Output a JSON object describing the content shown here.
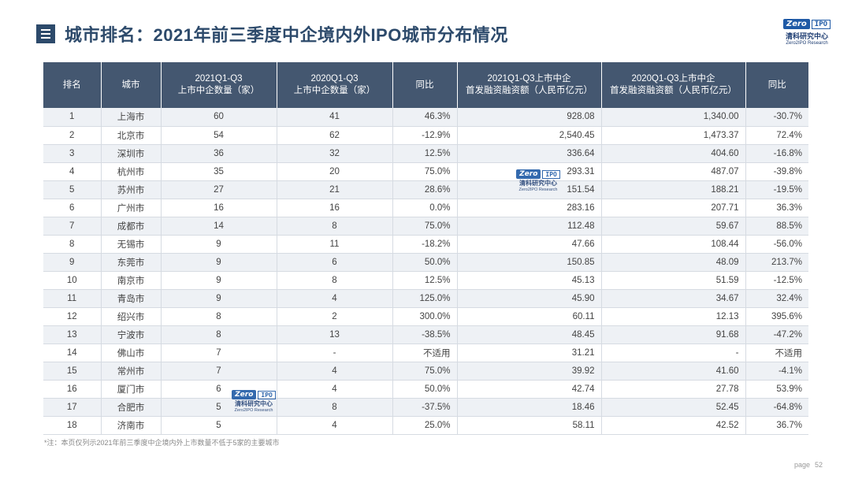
{
  "header": {
    "title": "城市排名：2021年前三季度中企境内外IPO城市分布情况"
  },
  "logo": {
    "zero": "Zero",
    "ipo": "IPO",
    "cn": "清科研究中心",
    "en": "Zero2IPO Research"
  },
  "table": {
    "columns": [
      "排名",
      "城市",
      "2021Q1-Q3\n上市中企数量（家）",
      "2020Q1-Q3\n上市中企数量（家）",
      "同比",
      "2021Q1-Q3上市中企\n首发融资融资额（人民币亿元）",
      "2020Q1-Q3上市中企\n首发融资融资额（人民币亿元）",
      "同比"
    ],
    "rows": [
      [
        "1",
        "上海市",
        "60",
        "41",
        "46.3%",
        "928.08",
        "1,340.00",
        "-30.7%"
      ],
      [
        "2",
        "北京市",
        "54",
        "62",
        "-12.9%",
        "2,540.45",
        "1,473.37",
        "72.4%"
      ],
      [
        "3",
        "深圳市",
        "36",
        "32",
        "12.5%",
        "336.64",
        "404.60",
        "-16.8%"
      ],
      [
        "4",
        "杭州市",
        "35",
        "20",
        "75.0%",
        "293.31",
        "487.07",
        "-39.8%"
      ],
      [
        "5",
        "苏州市",
        "27",
        "21",
        "28.6%",
        "151.54",
        "188.21",
        "-19.5%"
      ],
      [
        "6",
        "广州市",
        "16",
        "16",
        "0.0%",
        "283.16",
        "207.71",
        "36.3%"
      ],
      [
        "7",
        "成都市",
        "14",
        "8",
        "75.0%",
        "112.48",
        "59.67",
        "88.5%"
      ],
      [
        "8",
        "无锡市",
        "9",
        "11",
        "-18.2%",
        "47.66",
        "108.44",
        "-56.0%"
      ],
      [
        "9",
        "东莞市",
        "9",
        "6",
        "50.0%",
        "150.85",
        "48.09",
        "213.7%"
      ],
      [
        "10",
        "南京市",
        "9",
        "8",
        "12.5%",
        "45.13",
        "51.59",
        "-12.5%"
      ],
      [
        "11",
        "青岛市",
        "9",
        "4",
        "125.0%",
        "45.90",
        "34.67",
        "32.4%"
      ],
      [
        "12",
        "绍兴市",
        "8",
        "2",
        "300.0%",
        "60.11",
        "12.13",
        "395.6%"
      ],
      [
        "13",
        "宁波市",
        "8",
        "13",
        "-38.5%",
        "48.45",
        "91.68",
        "-47.2%"
      ],
      [
        "14",
        "佛山市",
        "7",
        "-",
        "不适用",
        "31.21",
        "-",
        "不适用"
      ],
      [
        "15",
        "常州市",
        "7",
        "4",
        "75.0%",
        "39.92",
        "41.60",
        "-4.1%"
      ],
      [
        "16",
        "厦门市",
        "6",
        "4",
        "50.0%",
        "42.74",
        "27.78",
        "53.9%"
      ],
      [
        "17",
        "合肥市",
        "5",
        "8",
        "-37.5%",
        "18.46",
        "52.45",
        "-64.8%"
      ],
      [
        "18",
        "济南市",
        "5",
        "4",
        "25.0%",
        "58.11",
        "42.52",
        "36.7%"
      ]
    ]
  },
  "footnote": "*注：本页仅列示2021年前三季度中企境内外上市数量不低于5家的主要城市",
  "page": {
    "label": "page",
    "number": "52"
  }
}
